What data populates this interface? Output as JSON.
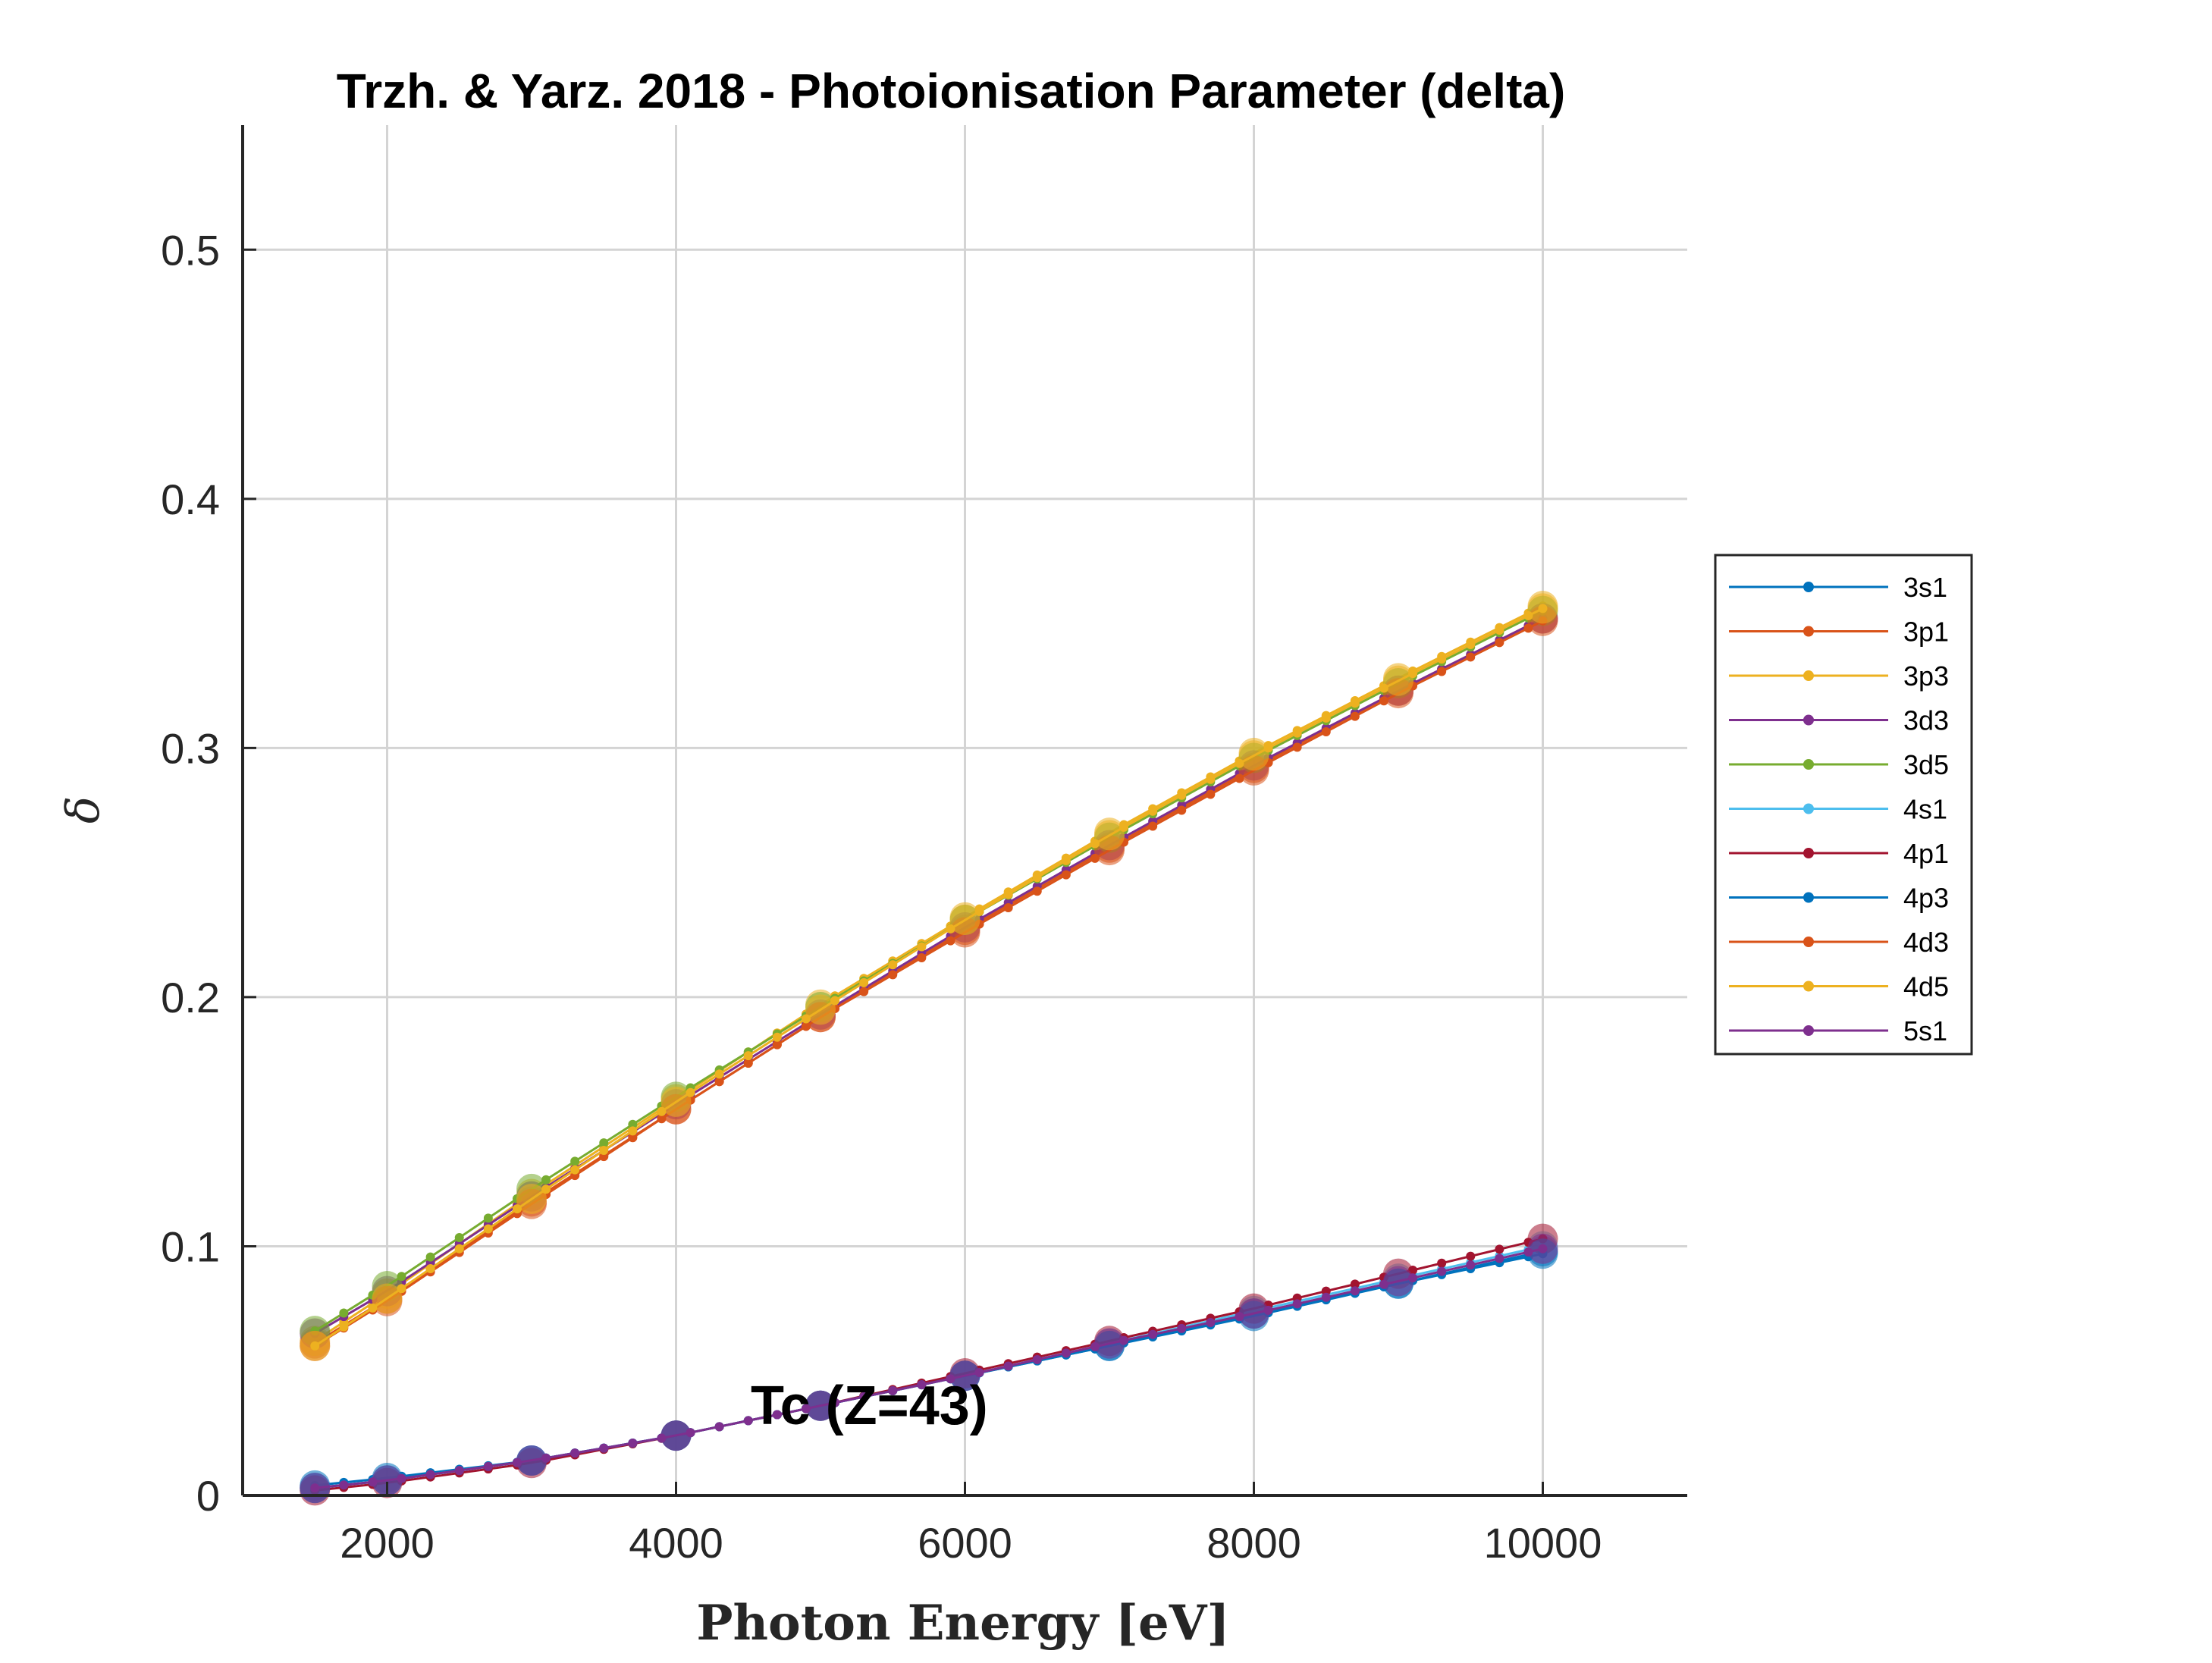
{
  "chart_data": {
    "type": "line",
    "title": "Trzh. & Yarz. 2018 - Photoionisation Parameter (delta)",
    "xlabel": "Photon Energy [eV]",
    "ylabel": "δ",
    "xlim": [
      1000,
      11000
    ],
    "ylim": [
      0,
      0.55
    ],
    "xticks": [
      2000,
      4000,
      6000,
      8000,
      10000
    ],
    "xtick_labels": [
      "2000",
      "4000",
      "6000",
      "8000",
      "10000"
    ],
    "yticks": [
      0,
      0.1,
      0.2,
      0.3,
      0.4,
      0.5
    ],
    "ytick_labels": [
      "0",
      "0.1",
      "0.2",
      "0.3",
      "0.4",
      "0.5"
    ],
    "grid": true,
    "legend_position": "right",
    "annotation": "Tc (Z=43)",
    "marker_x": [
      1500,
      2000,
      3000,
      4000,
      5000,
      6000,
      7000,
      8000,
      9000,
      10000
    ],
    "series": [
      {
        "name": "3s1",
        "color": "#0072BD",
        "values": [
          0.004,
          0.007,
          0.014,
          0.024,
          0.036,
          0.048,
          0.06,
          0.073,
          0.085,
          0.098
        ]
      },
      {
        "name": "3p1",
        "color": "#D95319",
        "values": [
          0.061,
          0.079,
          0.118,
          0.155,
          0.192,
          0.227,
          0.26,
          0.292,
          0.323,
          0.352
        ]
      },
      {
        "name": "3p3",
        "color": "#EDB120",
        "values": [
          0.062,
          0.081,
          0.121,
          0.159,
          0.197,
          0.232,
          0.266,
          0.298,
          0.328,
          0.357
        ]
      },
      {
        "name": "3d3",
        "color": "#7E2F8E",
        "values": [
          0.065,
          0.082,
          0.12,
          0.157,
          0.193,
          0.228,
          0.261,
          0.293,
          0.323,
          0.352
        ]
      },
      {
        "name": "3d5",
        "color": "#77AC30",
        "values": [
          0.066,
          0.084,
          0.123,
          0.16,
          0.196,
          0.231,
          0.264,
          0.296,
          0.326,
          0.355
        ]
      },
      {
        "name": "4s1",
        "color": "#4DBEEE",
        "values": [
          0.003,
          0.006,
          0.014,
          0.024,
          0.036,
          0.048,
          0.061,
          0.074,
          0.087,
          0.1
        ]
      },
      {
        "name": "4p1",
        "color": "#A2142F",
        "values": [
          0.002,
          0.005,
          0.013,
          0.024,
          0.036,
          0.049,
          0.062,
          0.075,
          0.089,
          0.103
        ]
      },
      {
        "name": "4p3",
        "color": "#0072BD",
        "values": [
          0.003,
          0.006,
          0.014,
          0.024,
          0.036,
          0.048,
          0.06,
          0.072,
          0.085,
          0.097
        ]
      },
      {
        "name": "4d3",
        "color": "#D95319",
        "values": [
          0.06,
          0.078,
          0.117,
          0.155,
          0.192,
          0.226,
          0.259,
          0.291,
          0.322,
          0.351
        ]
      },
      {
        "name": "4d5",
        "color": "#EDB120",
        "values": [
          0.06,
          0.079,
          0.119,
          0.158,
          0.195,
          0.231,
          0.265,
          0.297,
          0.327,
          0.356
        ]
      },
      {
        "name": "5s1",
        "color": "#7E2F8E",
        "values": [
          0.003,
          0.006,
          0.014,
          0.024,
          0.036,
          0.048,
          0.061,
          0.073,
          0.086,
          0.099
        ]
      }
    ]
  }
}
